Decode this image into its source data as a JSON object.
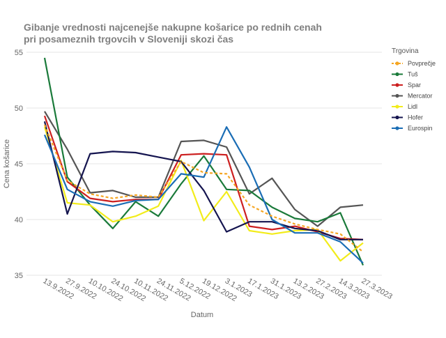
{
  "chart_data": {
    "type": "line",
    "title_lines": [
      "Gibanje vrednosti najcenejše nakupne košarice  po rednih cenah",
      " pri posameznih trgovcih v Sloveniji skozi čas"
    ],
    "xlabel": "Datum",
    "ylabel": "Cena košarice",
    "ylim": [
      35,
      55
    ],
    "yticks": [
      35,
      40,
      45,
      50,
      55
    ],
    "categories": [
      "13.9.2022",
      "27.9.2022",
      "10.10.2022",
      "24.10.2022",
      "10.11.2022",
      "24.11.2022",
      "5.12.2022",
      "19.12.2022",
      "3.1.2023",
      "17.1.2023",
      "31.1.2023",
      "13.2.2023",
      "27.2.2023",
      "14.3.2023",
      "27.3.2023"
    ],
    "legend_title": "Trgovina",
    "legend_position": "right",
    "grid": "horizontal",
    "series": [
      {
        "name": "Povprečje",
        "color": "#f5a623",
        "dashed": true,
        "values": [
          48.5,
          43.5,
          42.3,
          41.9,
          42.2,
          42.0,
          45.2,
          44.2,
          44.1,
          41.3,
          40.3,
          39.6,
          39.1,
          38.7,
          37.1
        ]
      },
      {
        "name": "Tuš",
        "color": "#1a7a3a",
        "dashed": false,
        "values": [
          54.5,
          43.8,
          41.3,
          39.2,
          41.6,
          40.3,
          43.2,
          45.7,
          42.7,
          42.6,
          41.1,
          40.1,
          39.8,
          40.6,
          35.9
        ]
      },
      {
        "name": "Spar",
        "color": "#cc1f1f",
        "dashed": false,
        "values": [
          49.3,
          43.4,
          41.9,
          41.6,
          41.8,
          41.8,
          45.8,
          45.9,
          45.8,
          39.4,
          39.1,
          39.4,
          38.9,
          38.3,
          38.2
        ]
      },
      {
        "name": "Mercator",
        "color": "#555555",
        "dashed": false,
        "values": [
          49.7,
          46.3,
          42.4,
          42.6,
          42.0,
          42.0,
          47.0,
          47.1,
          46.5,
          42.3,
          43.7,
          40.9,
          39.4,
          41.1,
          41.3
        ]
      },
      {
        "name": "Lidl",
        "color": "#f2ec1a",
        "dashed": false,
        "values": [
          48.3,
          41.5,
          41.3,
          39.8,
          40.3,
          41.2,
          45.3,
          39.9,
          42.5,
          39.0,
          38.7,
          39.0,
          39.1,
          36.3,
          37.9
        ]
      },
      {
        "name": "Hofer",
        "color": "#14144f",
        "dashed": false,
        "values": [
          48.8,
          40.5,
          45.9,
          46.1,
          46.0,
          45.6,
          45.2,
          42.6,
          38.9,
          39.8,
          39.8,
          39.2,
          39.0,
          38.2,
          38.2
        ]
      },
      {
        "name": "Eurospin",
        "color": "#1a6db5",
        "dashed": false,
        "values": [
          47.6,
          42.7,
          41.6,
          41.2,
          41.7,
          41.8,
          44.1,
          43.8,
          48.3,
          44.7,
          40.0,
          38.8,
          38.8,
          38.0,
          36.1
        ]
      }
    ]
  }
}
